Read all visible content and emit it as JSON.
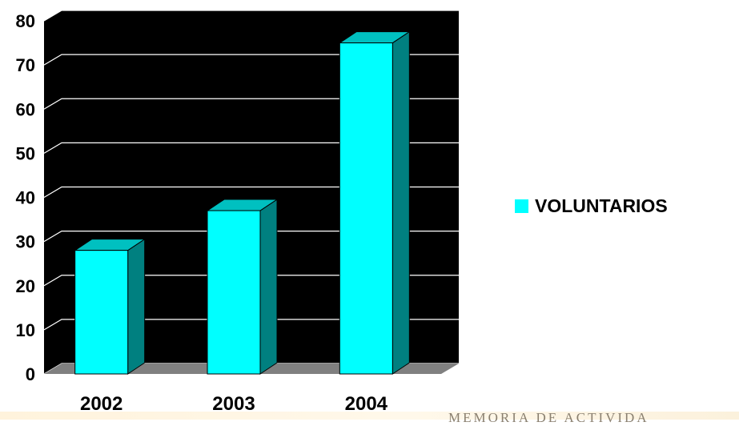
{
  "chart_data": {
    "type": "bar",
    "categories": [
      "2002",
      "2003",
      "2004"
    ],
    "series": [
      {
        "name": "VOLUNTARIOS",
        "values": [
          28,
          37,
          75
        ],
        "color": "#00ffff"
      }
    ],
    "ylim": [
      0,
      80
    ],
    "yticks": [
      0,
      10,
      20,
      30,
      40,
      50,
      60,
      70,
      80
    ],
    "grid": true,
    "plot_background": "#000000",
    "floor_color": "#808080",
    "side_color": "#008080",
    "legend_position": "right",
    "style": "3d"
  },
  "footer": {
    "text": "MEMORIA DE ACTIVIDA"
  }
}
